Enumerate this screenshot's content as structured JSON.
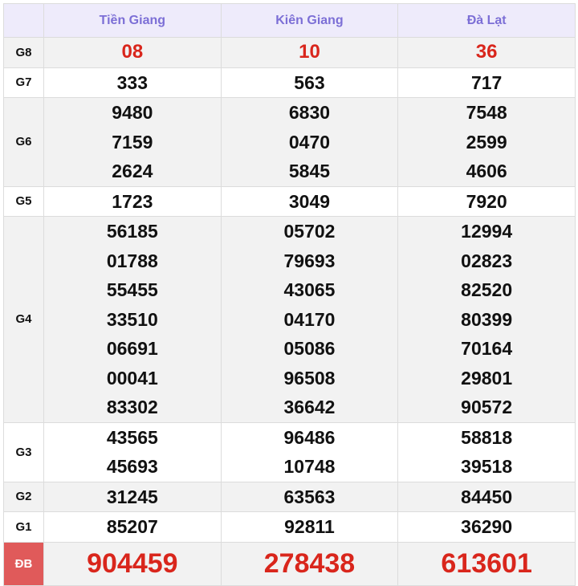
{
  "header": {
    "provinces": [
      "Tiền Giang",
      "Kiên Giang",
      "Đà Lạt"
    ]
  },
  "rows": [
    {
      "label": "G8",
      "values": [
        [
          "08"
        ],
        [
          "10"
        ],
        [
          "36"
        ]
      ]
    },
    {
      "label": "G7",
      "values": [
        [
          "333"
        ],
        [
          "563"
        ],
        [
          "717"
        ]
      ]
    },
    {
      "label": "G6",
      "values": [
        [
          "9480",
          "7159",
          "2624"
        ],
        [
          "6830",
          "0470",
          "5845"
        ],
        [
          "7548",
          "2599",
          "4606"
        ]
      ]
    },
    {
      "label": "G5",
      "values": [
        [
          "1723"
        ],
        [
          "3049"
        ],
        [
          "7920"
        ]
      ]
    },
    {
      "label": "G4",
      "values": [
        [
          "56185",
          "01788",
          "55455",
          "33510",
          "06691",
          "00041",
          "83302"
        ],
        [
          "05702",
          "79693",
          "43065",
          "04170",
          "05086",
          "96508",
          "36642"
        ],
        [
          "12994",
          "02823",
          "82520",
          "80399",
          "70164",
          "29801",
          "90572"
        ]
      ]
    },
    {
      "label": "G3",
      "values": [
        [
          "43565",
          "45693"
        ],
        [
          "96486",
          "10748"
        ],
        [
          "58818",
          "39518"
        ]
      ]
    },
    {
      "label": "G2",
      "values": [
        [
          "31245"
        ],
        [
          "63563"
        ],
        [
          "84450"
        ]
      ]
    },
    {
      "label": "G1",
      "values": [
        [
          "85207"
        ],
        [
          "92811"
        ],
        [
          "36290"
        ]
      ]
    },
    {
      "label": "ĐB",
      "values": [
        [
          "904459"
        ],
        [
          "278438"
        ],
        [
          "613601"
        ]
      ]
    }
  ],
  "colors": {
    "header_text": "#7c6fd6",
    "prize_red": "#d9261c",
    "db_label_bg": "#e05a5a"
  }
}
